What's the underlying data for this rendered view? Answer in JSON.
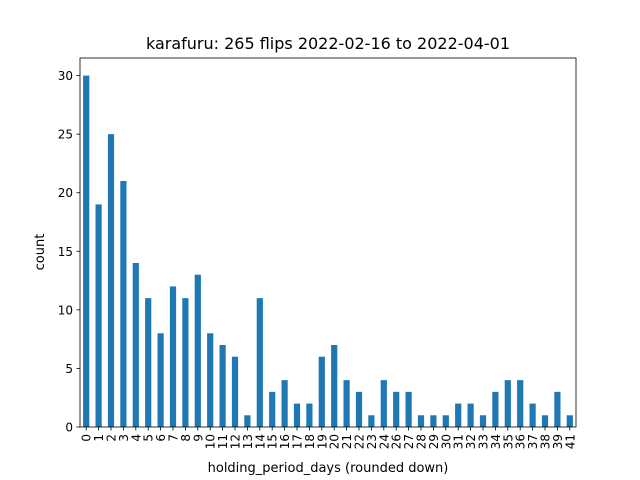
{
  "chart_data": {
    "type": "bar",
    "title": "karafuru: 265 flips 2022-02-16 to 2022-04-01",
    "xlabel": "holding_period_days (rounded down)",
    "ylabel": "count",
    "ylim": [
      0,
      31.5
    ],
    "yticks": [
      0,
      5,
      10,
      15,
      20,
      25,
      30
    ],
    "grid": false,
    "bar_color": "#1f77b4",
    "categories": [
      "0",
      "1",
      "2",
      "3",
      "4",
      "5",
      "6",
      "7",
      "8",
      "9",
      "10",
      "11",
      "12",
      "13",
      "14",
      "15",
      "16",
      "17",
      "18",
      "19",
      "20",
      "21",
      "22",
      "23",
      "24",
      "26",
      "27",
      "28",
      "29",
      "30",
      "31",
      "32",
      "33",
      "34",
      "35",
      "36",
      "37",
      "38",
      "39",
      "41"
    ],
    "values": [
      30,
      19,
      25,
      21,
      14,
      11,
      8,
      12,
      11,
      13,
      8,
      7,
      6,
      1,
      11,
      3,
      4,
      2,
      2,
      6,
      7,
      4,
      3,
      1,
      4,
      3,
      3,
      1,
      1,
      1,
      2,
      2,
      1,
      3,
      4,
      4,
      2,
      1,
      3,
      1
    ]
  }
}
